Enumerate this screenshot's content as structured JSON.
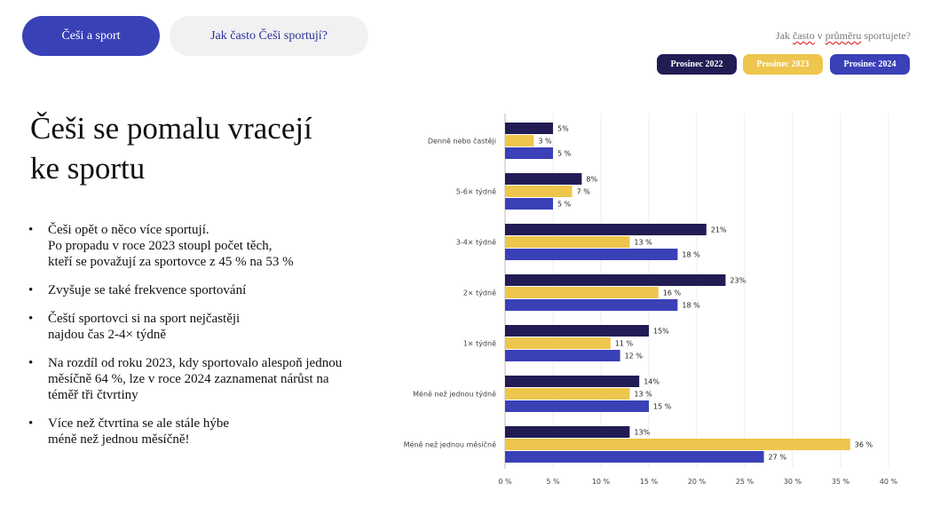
{
  "tabs": [
    {
      "label": "Češi a sport"
    },
    {
      "label": "Jak často Češi sportují?"
    }
  ],
  "question": {
    "prefix": "Jak ",
    "w1": "často",
    "mid": " v ",
    "w2": "průměru",
    "suffix": " sportujete?"
  },
  "legend": [
    {
      "label": "Prosinec 2022",
      "color": "#221c54"
    },
    {
      "label": "Prosinec 2023",
      "color": "#eec54d"
    },
    {
      "label": "Prosinec 2024",
      "color": "#3a40b6"
    }
  ],
  "heading": {
    "line1": "Češi se pomalu vracejí",
    "line2": "ke sportu"
  },
  "bullets": [
    {
      "lines": [
        "Češi opět o něco více sportují.",
        "Po propadu v roce 2023 stoupl počet těch,",
        "kteří se považují za sportovce z 45 % na 53 %"
      ]
    },
    {
      "lines": [
        "Zvyšuje se také frekvence sportování"
      ]
    },
    {
      "lines": [
        "Čeští sportovci si na sport nejčastěji",
        "najdou čas 2-4× týdně"
      ]
    },
    {
      "lines": [
        "Na rozdíl od roku 2023, kdy sportovalo alespoň jednou",
        "měsíčně 64 %, lze v roce 2024 zaznamenat nárůst na",
        "téměř tři čtvrtiny"
      ]
    },
    {
      "lines": [
        "Více než čtvrtina se ale stále hýbe",
        "méně než jednou měsíčně!"
      ]
    }
  ],
  "chart_data": {
    "type": "bar",
    "orientation": "horizontal",
    "categories": [
      "Denně nebo častěji",
      "5-6× týdně",
      "3-4× týdně",
      "2× týdně",
      "1× týdně",
      "Méně než jednou týdně",
      "Méně než jednou měsíčně"
    ],
    "series": [
      {
        "name": "Prosinec 2022",
        "color": "#221c54",
        "values": [
          5,
          8,
          21,
          23,
          15,
          14,
          13
        ],
        "labels": [
          "5%",
          "8%",
          "21%",
          "23%",
          "15%",
          "14%",
          "13%"
        ]
      },
      {
        "name": "Prosinec 2023",
        "color": "#eec54d",
        "values": [
          3,
          7,
          13,
          16,
          11,
          13,
          36
        ],
        "labels": [
          "3 %",
          "7 %",
          "13 %",
          "16 %",
          "11 %",
          "13 %",
          "36 %"
        ]
      },
      {
        "name": "Prosinec 2024",
        "color": "#3a40b6",
        "values": [
          5,
          5,
          18,
          18,
          12,
          15,
          27
        ],
        "labels": [
          "5 %",
          "5 %",
          "18 %",
          "18 %",
          "12 %",
          "15 %",
          "27 %"
        ]
      }
    ],
    "xlim": [
      0,
      40
    ],
    "xticks": [
      "0 %",
      "5 %",
      "10 %",
      "15 %",
      "20 %",
      "25 %",
      "30 %",
      "35 %",
      "40 %"
    ],
    "grid": true,
    "legend_position": "top-right"
  }
}
